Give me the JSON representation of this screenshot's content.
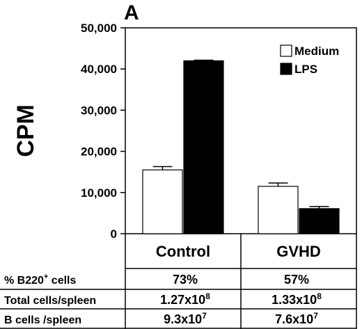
{
  "panel_label": "A",
  "chart_data": {
    "type": "bar",
    "title": "",
    "xlabel": "",
    "ylabel": "CPM",
    "ylim": [
      0,
      50000
    ],
    "yticks": [
      "0",
      "10,000",
      "20,000",
      "30,000",
      "40,000",
      "50,000"
    ],
    "ytick_values": [
      0,
      10000,
      20000,
      30000,
      40000,
      50000
    ],
    "categories": [
      "Control",
      "GVHD"
    ],
    "series": [
      {
        "name": "Medium",
        "values": [
          15500,
          11500
        ],
        "errors": [
          800,
          800
        ],
        "color": "#ffffff"
      },
      {
        "name": "LPS",
        "values": [
          42000,
          6100
        ],
        "errors": [
          150,
          500
        ],
        "color": "#000000"
      }
    ],
    "legend_position": "top-right",
    "grid": false
  },
  "table": {
    "rows": [
      {
        "label": "% B220",
        "label_sup": "+",
        "label_suffix": " cells",
        "control": "73%",
        "control_sup": "",
        "gvhd": "57%",
        "gvhd_sup": ""
      },
      {
        "label": "Total cells/spleen",
        "label_sup": "",
        "label_suffix": "",
        "control": "1.27x10",
        "control_sup": "8",
        "gvhd": "1.33x10",
        "gvhd_sup": "8"
      },
      {
        "label": "B cells /spleen",
        "label_sup": "",
        "label_suffix": "",
        "control": "9.3x10",
        "control_sup": "7",
        "gvhd": "7.6x10",
        "gvhd_sup": "7"
      }
    ]
  }
}
